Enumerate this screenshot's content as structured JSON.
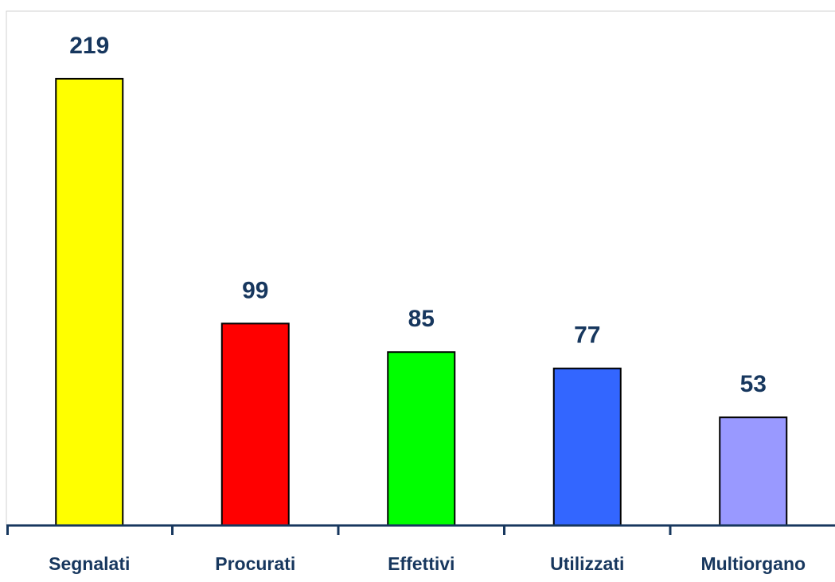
{
  "chart_data": {
    "type": "bar",
    "categories": [
      "Segnalati",
      "Procurati",
      "Effettivi",
      "Utilizzati",
      "Multiorgano"
    ],
    "values": [
      219,
      99,
      85,
      77,
      53
    ],
    "colors": [
      "#ffff00",
      "#ff0000",
      "#00ff00",
      "#3366ff",
      "#9999ff"
    ]
  }
}
